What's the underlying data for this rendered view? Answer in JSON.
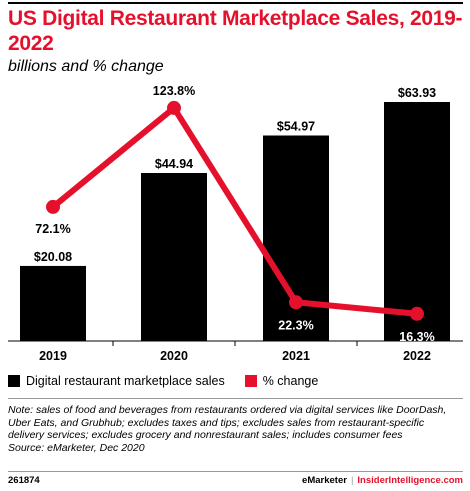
{
  "header": {
    "title": "US Digital Restaurant Marketplace Sales, 2019-2022",
    "subtitle": "billions and % change"
  },
  "chart_data": {
    "type": "bar",
    "categories": [
      "2019",
      "2020",
      "2021",
      "2022"
    ],
    "series": [
      {
        "name": "Digital restaurant marketplace sales",
        "type": "bar",
        "values": [
          20.08,
          44.94,
          54.97,
          63.93
        ],
        "labels": [
          "$20.08",
          "$44.94",
          "$54.97",
          "$63.93"
        ],
        "color": "#000000"
      },
      {
        "name": "% change",
        "type": "line",
        "values": [
          72.1,
          123.8,
          22.3,
          16.3
        ],
        "labels": [
          "72.1%",
          "123.8%",
          "22.3%",
          "16.3%"
        ],
        "color": "#e5112c"
      }
    ],
    "legend_placement": "bottom",
    "grid": false
  },
  "note": "Note: sales of food and beverages from restaurants ordered via digital services like DoorDash, Uber Eats, and Grubhub; excludes taxes and tips; excludes sales from restaurant-specific delivery services; excludes grocery and nonrestaurant sales; includes consumer fees",
  "source": "Source: eMarketer, Dec 2020",
  "footer": {
    "chart_id": "261874",
    "brand_left": "eMarketer",
    "brand_separator": "|",
    "brand_right": "InsiderIntelligence.com"
  }
}
